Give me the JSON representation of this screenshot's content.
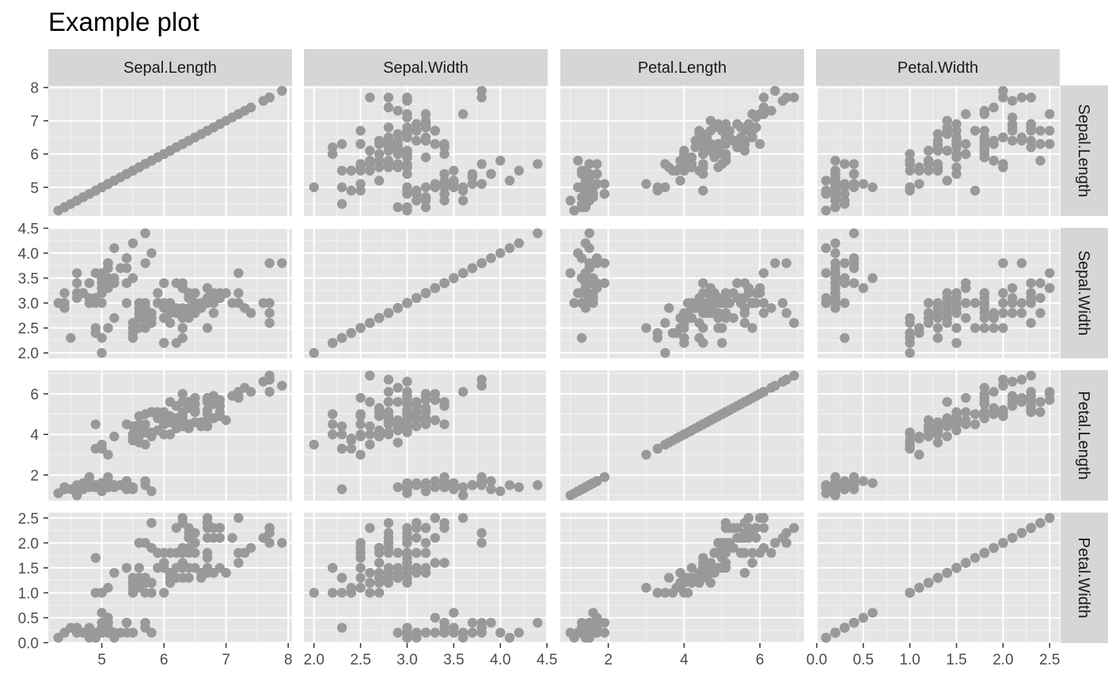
{
  "chart_data": {
    "type": "scatter",
    "title": "Example plot",
    "facet_layout": "grid",
    "variables": [
      "Sepal.Length",
      "Sepal.Width",
      "Petal.Length",
      "Petal.Width"
    ],
    "axes": {
      "Sepal.Length": {
        "range": [
          4.3,
          7.9
        ],
        "ticks": [
          5,
          6,
          7,
          8
        ],
        "tick_labels": [
          "5",
          "6",
          "7",
          "8"
        ]
      },
      "Sepal.Width": {
        "range": [
          2.0,
          4.4
        ],
        "ticks": [
          2.0,
          2.5,
          3.0,
          3.5,
          4.0,
          4.5
        ],
        "tick_labels": [
          "2.0",
          "2.5",
          "3.0",
          "3.5",
          "4.0",
          "4.5"
        ]
      },
      "Petal.Length": {
        "range": [
          1.0,
          6.9
        ],
        "ticks": [
          2,
          4,
          6
        ],
        "tick_labels": [
          "2",
          "4",
          "6"
        ]
      },
      "Petal.Width": {
        "range": [
          0.1,
          2.5
        ],
        "ticks": [
          0.0,
          0.5,
          1.0,
          1.5,
          2.0,
          2.5
        ],
        "tick_labels": [
          "0.0",
          "0.5",
          "1.0",
          "1.5",
          "2.0",
          "2.5"
        ]
      }
    },
    "point_color": "#999999",
    "panel_background": "#e5e5e5",
    "strip_background": "#d6d6d6",
    "grid": true,
    "legend": "none",
    "observations": [
      [
        5.1,
        3.5,
        1.4,
        0.2
      ],
      [
        4.9,
        3.0,
        1.4,
        0.2
      ],
      [
        4.7,
        3.2,
        1.3,
        0.2
      ],
      [
        4.6,
        3.1,
        1.5,
        0.2
      ],
      [
        5.0,
        3.6,
        1.4,
        0.2
      ],
      [
        5.4,
        3.9,
        1.7,
        0.4
      ],
      [
        4.6,
        3.4,
        1.4,
        0.3
      ],
      [
        5.0,
        3.4,
        1.5,
        0.2
      ],
      [
        4.4,
        2.9,
        1.4,
        0.2
      ],
      [
        4.9,
        3.1,
        1.5,
        0.1
      ],
      [
        5.4,
        3.7,
        1.5,
        0.2
      ],
      [
        4.8,
        3.4,
        1.6,
        0.2
      ],
      [
        4.8,
        3.0,
        1.4,
        0.1
      ],
      [
        4.3,
        3.0,
        1.1,
        0.1
      ],
      [
        5.8,
        4.0,
        1.2,
        0.2
      ],
      [
        5.7,
        4.4,
        1.5,
        0.4
      ],
      [
        5.4,
        3.9,
        1.3,
        0.4
      ],
      [
        5.1,
        3.5,
        1.4,
        0.3
      ],
      [
        5.7,
        3.8,
        1.7,
        0.3
      ],
      [
        5.1,
        3.8,
        1.5,
        0.3
      ],
      [
        5.4,
        3.4,
        1.7,
        0.2
      ],
      [
        5.1,
        3.7,
        1.5,
        0.4
      ],
      [
        4.6,
        3.6,
        1.0,
        0.2
      ],
      [
        5.1,
        3.3,
        1.7,
        0.5
      ],
      [
        4.8,
        3.4,
        1.9,
        0.2
      ],
      [
        5.0,
        3.0,
        1.6,
        0.2
      ],
      [
        5.0,
        3.4,
        1.6,
        0.4
      ],
      [
        5.2,
        3.5,
        1.5,
        0.2
      ],
      [
        5.2,
        3.4,
        1.4,
        0.2
      ],
      [
        4.7,
        3.2,
        1.6,
        0.2
      ],
      [
        4.8,
        3.1,
        1.6,
        0.2
      ],
      [
        5.4,
        3.4,
        1.5,
        0.4
      ],
      [
        5.2,
        4.1,
        1.5,
        0.1
      ],
      [
        5.5,
        4.2,
        1.4,
        0.2
      ],
      [
        4.9,
        3.1,
        1.5,
        0.2
      ],
      [
        5.0,
        3.2,
        1.2,
        0.2
      ],
      [
        5.5,
        3.5,
        1.3,
        0.2
      ],
      [
        4.9,
        3.6,
        1.4,
        0.1
      ],
      [
        4.4,
        3.0,
        1.3,
        0.2
      ],
      [
        5.1,
        3.4,
        1.5,
        0.2
      ],
      [
        5.0,
        3.5,
        1.3,
        0.3
      ],
      [
        4.5,
        2.3,
        1.3,
        0.3
      ],
      [
        4.4,
        3.2,
        1.3,
        0.2
      ],
      [
        5.0,
        3.5,
        1.6,
        0.6
      ],
      [
        5.1,
        3.8,
        1.9,
        0.4
      ],
      [
        4.8,
        3.0,
        1.4,
        0.3
      ],
      [
        5.1,
        3.8,
        1.6,
        0.2
      ],
      [
        4.6,
        3.2,
        1.4,
        0.2
      ],
      [
        5.3,
        3.7,
        1.5,
        0.2
      ],
      [
        5.0,
        3.3,
        1.4,
        0.2
      ],
      [
        7.0,
        3.2,
        4.7,
        1.4
      ],
      [
        6.4,
        3.2,
        4.5,
        1.5
      ],
      [
        6.9,
        3.1,
        4.9,
        1.5
      ],
      [
        5.5,
        2.3,
        4.0,
        1.3
      ],
      [
        6.5,
        2.8,
        4.6,
        1.5
      ],
      [
        5.7,
        2.8,
        4.5,
        1.3
      ],
      [
        6.3,
        3.3,
        4.7,
        1.6
      ],
      [
        4.9,
        2.4,
        3.3,
        1.0
      ],
      [
        6.6,
        2.9,
        4.6,
        1.3
      ],
      [
        5.2,
        2.7,
        3.9,
        1.4
      ],
      [
        5.0,
        2.0,
        3.5,
        1.0
      ],
      [
        5.9,
        3.0,
        4.2,
        1.5
      ],
      [
        6.0,
        2.2,
        4.0,
        1.0
      ],
      [
        6.1,
        2.9,
        4.7,
        1.4
      ],
      [
        5.6,
        2.9,
        3.6,
        1.3
      ],
      [
        6.7,
        3.1,
        4.4,
        1.4
      ],
      [
        5.6,
        3.0,
        4.5,
        1.5
      ],
      [
        5.8,
        2.7,
        4.1,
        1.0
      ],
      [
        6.2,
        2.2,
        4.5,
        1.5
      ],
      [
        5.6,
        2.5,
        3.9,
        1.1
      ],
      [
        5.9,
        3.2,
        4.8,
        1.8
      ],
      [
        6.1,
        2.8,
        4.0,
        1.3
      ],
      [
        6.3,
        2.5,
        4.9,
        1.5
      ],
      [
        6.1,
        2.8,
        4.7,
        1.2
      ],
      [
        6.4,
        2.9,
        4.3,
        1.3
      ],
      [
        6.6,
        3.0,
        4.4,
        1.4
      ],
      [
        6.8,
        2.8,
        4.8,
        1.4
      ],
      [
        6.7,
        3.0,
        5.0,
        1.7
      ],
      [
        6.0,
        2.9,
        4.5,
        1.5
      ],
      [
        5.7,
        2.6,
        3.5,
        1.0
      ],
      [
        5.5,
        2.4,
        3.8,
        1.1
      ],
      [
        5.5,
        2.4,
        3.7,
        1.0
      ],
      [
        5.8,
        2.7,
        3.9,
        1.2
      ],
      [
        6.0,
        2.7,
        5.1,
        1.6
      ],
      [
        5.4,
        3.0,
        4.5,
        1.5
      ],
      [
        6.0,
        3.4,
        4.5,
        1.6
      ],
      [
        6.7,
        3.1,
        4.7,
        1.5
      ],
      [
        6.3,
        2.3,
        4.4,
        1.3
      ],
      [
        5.6,
        3.0,
        4.1,
        1.3
      ],
      [
        5.5,
        2.5,
        4.0,
        1.3
      ],
      [
        5.5,
        2.6,
        4.4,
        1.2
      ],
      [
        6.1,
        3.0,
        4.6,
        1.4
      ],
      [
        5.8,
        2.6,
        4.0,
        1.2
      ],
      [
        5.0,
        2.3,
        3.3,
        1.0
      ],
      [
        5.6,
        2.7,
        4.2,
        1.3
      ],
      [
        5.7,
        3.0,
        4.2,
        1.2
      ],
      [
        5.7,
        2.9,
        4.2,
        1.3
      ],
      [
        6.2,
        2.9,
        4.3,
        1.3
      ],
      [
        5.1,
        2.5,
        3.0,
        1.1
      ],
      [
        5.7,
        2.8,
        4.1,
        1.3
      ],
      [
        6.3,
        3.3,
        6.0,
        2.5
      ],
      [
        5.8,
        2.7,
        5.1,
        1.9
      ],
      [
        7.1,
        3.0,
        5.9,
        2.1
      ],
      [
        6.3,
        2.9,
        5.6,
        1.8
      ],
      [
        6.5,
        3.0,
        5.8,
        2.2
      ],
      [
        7.6,
        3.0,
        6.6,
        2.1
      ],
      [
        4.9,
        2.5,
        4.5,
        1.7
      ],
      [
        7.3,
        2.9,
        6.3,
        1.8
      ],
      [
        6.7,
        2.5,
        5.8,
        1.8
      ],
      [
        7.2,
        3.6,
        6.1,
        2.5
      ],
      [
        6.5,
        3.2,
        5.1,
        2.0
      ],
      [
        6.4,
        2.7,
        5.3,
        1.9
      ],
      [
        6.8,
        3.0,
        5.5,
        2.1
      ],
      [
        5.7,
        2.5,
        5.0,
        2.0
      ],
      [
        5.8,
        2.8,
        5.1,
        2.4
      ],
      [
        6.4,
        3.2,
        5.3,
        2.3
      ],
      [
        6.5,
        3.0,
        5.5,
        1.8
      ],
      [
        7.7,
        3.8,
        6.7,
        2.2
      ],
      [
        7.7,
        2.6,
        6.9,
        2.3
      ],
      [
        6.0,
        2.2,
        5.0,
        1.5
      ],
      [
        6.9,
        3.2,
        5.7,
        2.3
      ],
      [
        5.6,
        2.8,
        4.9,
        2.0
      ],
      [
        7.7,
        2.8,
        6.7,
        2.0
      ],
      [
        6.3,
        2.7,
        4.9,
        1.8
      ],
      [
        6.7,
        3.3,
        5.7,
        2.1
      ],
      [
        7.2,
        3.2,
        6.0,
        1.8
      ],
      [
        6.2,
        2.8,
        4.8,
        1.8
      ],
      [
        6.1,
        3.0,
        4.9,
        1.8
      ],
      [
        6.4,
        2.8,
        5.6,
        2.1
      ],
      [
        7.2,
        3.0,
        5.8,
        1.6
      ],
      [
        7.4,
        2.8,
        6.1,
        1.9
      ],
      [
        7.9,
        3.8,
        6.4,
        2.0
      ],
      [
        6.4,
        2.8,
        5.6,
        2.2
      ],
      [
        6.3,
        2.8,
        5.1,
        1.5
      ],
      [
        6.1,
        2.6,
        5.6,
        1.4
      ],
      [
        7.7,
        3.0,
        6.1,
        2.3
      ],
      [
        6.3,
        3.4,
        5.6,
        2.4
      ],
      [
        6.4,
        3.1,
        5.5,
        1.8
      ],
      [
        6.0,
        3.0,
        4.8,
        1.8
      ],
      [
        6.9,
        3.1,
        5.4,
        2.1
      ],
      [
        6.7,
        3.1,
        5.6,
        2.4
      ],
      [
        6.9,
        3.1,
        5.1,
        2.3
      ],
      [
        5.8,
        2.7,
        5.1,
        1.9
      ],
      [
        6.8,
        3.2,
        5.9,
        2.3
      ],
      [
        6.7,
        3.3,
        5.7,
        2.5
      ],
      [
        6.7,
        3.0,
        5.2,
        2.3
      ],
      [
        6.3,
        2.5,
        5.0,
        1.9
      ],
      [
        6.5,
        3.0,
        5.2,
        2.0
      ],
      [
        6.2,
        3.4,
        5.4,
        2.3
      ],
      [
        5.9,
        3.0,
        5.1,
        1.8
      ]
    ]
  }
}
